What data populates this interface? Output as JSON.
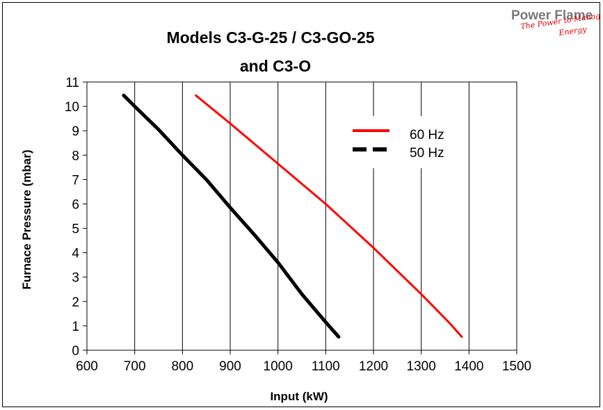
{
  "brand": {
    "name": "Power Flame",
    "tagline_line1": "The Power to Manage",
    "tagline_line2": "Energy"
  },
  "chart_data": {
    "type": "line",
    "title_line1": "Models C3-G-25 / C3-GO-25",
    "title_line2": "and C3-O",
    "xlabel": "Input (kW)",
    "ylabel": "Furnace Pressure (mbar)",
    "xlim": [
      600,
      1500
    ],
    "ylim": [
      0,
      11
    ],
    "x_ticks": [
      600,
      700,
      800,
      900,
      1000,
      1100,
      1200,
      1300,
      1400,
      1500
    ],
    "y_ticks": [
      0,
      1,
      2,
      3,
      4,
      5,
      6,
      7,
      8,
      9,
      10,
      11
    ],
    "grid": "vertical",
    "legend_position": "upper-right",
    "series": [
      {
        "name": "60 Hz",
        "color": "#ff0000",
        "style": "solid",
        "points": [
          [
            828,
            10.45
          ],
          [
            900,
            9.3
          ],
          [
            1000,
            7.65
          ],
          [
            1100,
            6.0
          ],
          [
            1200,
            4.2
          ],
          [
            1300,
            2.3
          ],
          [
            1360,
            1.1
          ],
          [
            1385,
            0.55
          ]
        ]
      },
      {
        "name": "50 Hz",
        "color": "#000000",
        "style": "dashed",
        "points": [
          [
            677,
            10.45
          ],
          [
            700,
            10.0
          ],
          [
            750,
            9.05
          ],
          [
            800,
            8.0
          ],
          [
            850,
            7.0
          ],
          [
            900,
            5.85
          ],
          [
            950,
            4.75
          ],
          [
            1000,
            3.6
          ],
          [
            1050,
            2.3
          ],
          [
            1100,
            1.15
          ],
          [
            1127,
            0.55
          ]
        ]
      }
    ]
  }
}
